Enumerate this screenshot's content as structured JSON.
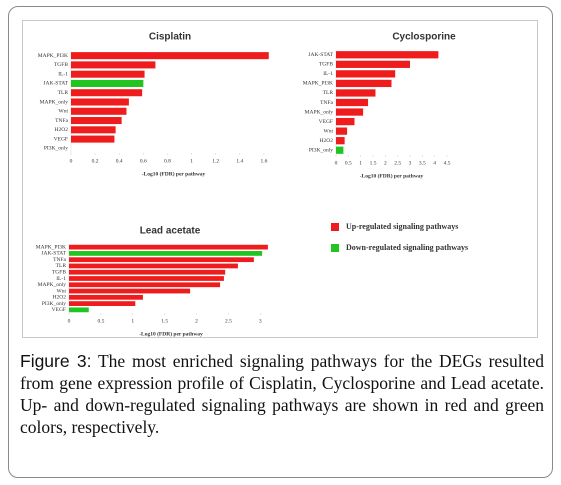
{
  "chart_data": [
    {
      "type": "barh",
      "title": "Cisplatin",
      "x_label": "-Log10 (FDR)  per pathway",
      "categories": [
        "MAPK_PI3K",
        "TGFB",
        "IL-1",
        "JAK-STAT",
        "TLR",
        "MAPK_only",
        "Wnt",
        "TNFa",
        "H2O2",
        "VEGF",
        "PI3K_only"
      ],
      "values": [
        1.64,
        0.7,
        0.61,
        0.6,
        0.59,
        0.48,
        0.46,
        0.42,
        0.37,
        0.36,
        0
      ],
      "colors": [
        "#ee1c1c",
        "#ee1c1c",
        "#ee1c1c",
        "#22c422",
        "#ee1c1c",
        "#ee1c1c",
        "#ee1c1c",
        "#ee1c1c",
        "#ee1c1c",
        "#ee1c1c",
        "#ee1c1c"
      ],
      "xlim": [
        0,
        1.7
      ],
      "xticks": [
        0,
        0.2,
        0.4,
        0.6,
        0.8,
        1,
        1.2,
        1.4,
        1.6
      ]
    },
    {
      "type": "barh",
      "title": "Cyclosporine",
      "x_label": "-Log10 (FDR)  per pathway",
      "categories": [
        "JAK-STAT",
        "TGFB",
        "IL-1",
        "MAPK_PI3K",
        "TLR",
        "TNFa",
        "MAPK_only",
        "VEGF",
        "Wnt",
        "H2O2",
        "PI3K_only"
      ],
      "values": [
        4.15,
        3.0,
        2.4,
        2.25,
        1.6,
        1.3,
        1.1,
        0.75,
        0.45,
        0.35,
        0.3
      ],
      "colors": [
        "#ee1c1c",
        "#ee1c1c",
        "#ee1c1c",
        "#ee1c1c",
        "#ee1c1c",
        "#ee1c1c",
        "#ee1c1c",
        "#ee1c1c",
        "#ee1c1c",
        "#ee1c1c",
        "#22c422"
      ],
      "xlim": [
        0,
        4.5
      ],
      "xticks": [
        0,
        0.5,
        1,
        1.5,
        2,
        2.5,
        3,
        3.5,
        4,
        4.5
      ]
    },
    {
      "type": "barh",
      "title": "Lead acetate",
      "x_label": "-Log10 (FDR)  per pathway",
      "categories": [
        "MAPK_PI3K",
        "JAK-STAT",
        "TNFa",
        "TLR",
        "TGFB",
        "IL-1",
        "MAPK_only",
        "Wnt",
        "H2O2",
        "PI3K_only",
        "VEGF"
      ],
      "values": [
        3.12,
        3.03,
        2.9,
        2.65,
        2.45,
        2.43,
        2.37,
        1.9,
        1.16,
        1.04,
        0.31
      ],
      "colors": [
        "#ee1c1c",
        "#22c422",
        "#ee1c1c",
        "#ee1c1c",
        "#ee1c1c",
        "#ee1c1c",
        "#ee1c1c",
        "#ee1c1c",
        "#ee1c1c",
        "#ee1c1c",
        "#22c422"
      ],
      "xlim": [
        0,
        3.2
      ],
      "xticks": [
        0,
        0.5,
        1,
        1.5,
        2,
        2.5,
        3
      ]
    }
  ],
  "legend": [
    {
      "label": "Up-regulated signaling pathways",
      "color": "#ee1c1c"
    },
    {
      "label": "Down-regulated signaling pathways",
      "color": "#22c422"
    }
  ],
  "caption": {
    "label": "Figure 3:",
    "text": "The most enriched signaling pathways for the DEGs resulted from gene expression profile of Cisplatin, Cyclosporine and Lead acetate. Up- and down-regulated signaling pathways are shown in red and green colors, respectively."
  }
}
